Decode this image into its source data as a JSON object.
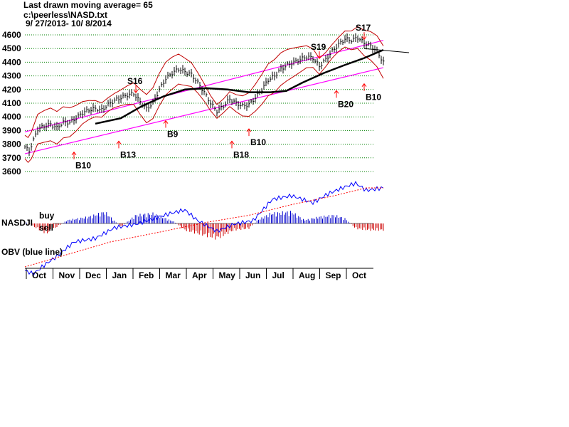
{
  "header": {
    "line1": "Last drawn moving average= 65",
    "line2": "c:\\peerless\\NASD.txt",
    "line3": " 9/ 27/2013- 10/ 8/2014"
  },
  "colors": {
    "price": "#000000",
    "channel": "#ff00ff",
    "bands": "#c00000",
    "grid": "#008000",
    "indicator_pos": "#0000cc",
    "indicator_neg": "#cc0000",
    "obv": "#0000ff",
    "obv_ma": "#ff0000",
    "arrow": "#ff0000"
  },
  "chart_data": {
    "type": "line",
    "title": "",
    "y_ticks": [
      "4600",
      "4500",
      "4400",
      "4300",
      "4200",
      "4100",
      "4000",
      "3900",
      "3800",
      "3700",
      "3600"
    ],
    "ylim": [
      3600,
      4600
    ],
    "grid": true,
    "months": [
      "Oct",
      "Nov",
      "Dec",
      "Jan",
      "Feb",
      "Mar",
      "Apr",
      "May",
      "Jun",
      "Jul",
      "Aug",
      "Sep",
      "Oct"
    ],
    "close": [
      [
        0,
        3780
      ],
      [
        4,
        3750
      ],
      [
        8,
        3830
      ],
      [
        12,
        3910
      ],
      [
        18,
        3930
      ],
      [
        24,
        3945
      ],
      [
        30,
        3920
      ],
      [
        36,
        3960
      ],
      [
        42,
        3960
      ],
      [
        48,
        3990
      ],
      [
        54,
        4030
      ],
      [
        60,
        4050
      ],
      [
        66,
        4060
      ],
      [
        72,
        4050
      ],
      [
        78,
        4090
      ],
      [
        84,
        4120
      ],
      [
        90,
        4140
      ],
      [
        96,
        4160
      ],
      [
        102,
        4170
      ],
      [
        108,
        4110
      ],
      [
        114,
        4060
      ],
      [
        120,
        4100
      ],
      [
        126,
        4200
      ],
      [
        132,
        4280
      ],
      [
        138,
        4320
      ],
      [
        144,
        4350
      ],
      [
        150,
        4330
      ],
      [
        156,
        4310
      ],
      [
        162,
        4250
      ],
      [
        168,
        4180
      ],
      [
        174,
        4100
      ],
      [
        180,
        4040
      ],
      [
        186,
        4080
      ],
      [
        192,
        4130
      ],
      [
        198,
        4100
      ],
      [
        204,
        4080
      ],
      [
        210,
        4090
      ],
      [
        216,
        4140
      ],
      [
        222,
        4200
      ],
      [
        228,
        4270
      ],
      [
        234,
        4300
      ],
      [
        240,
        4350
      ],
      [
        246,
        4380
      ],
      [
        252,
        4400
      ],
      [
        258,
        4420
      ],
      [
        264,
        4440
      ],
      [
        270,
        4430
      ],
      [
        276,
        4370
      ],
      [
        282,
        4420
      ],
      [
        288,
        4480
      ],
      [
        294,
        4530
      ],
      [
        300,
        4570
      ],
      [
        306,
        4560
      ],
      [
        312,
        4580
      ],
      [
        318,
        4540
      ],
      [
        324,
        4520
      ],
      [
        330,
        4480
      ],
      [
        336,
        4400
      ]
    ],
    "moving_average_65": [
      [
        66,
        3950
      ],
      [
        90,
        3990
      ],
      [
        110,
        4080
      ],
      [
        130,
        4150
      ],
      [
        150,
        4200
      ],
      [
        170,
        4210
      ],
      [
        190,
        4200
      ],
      [
        210,
        4180
      ],
      [
        230,
        4180
      ],
      [
        245,
        4190
      ],
      [
        260,
        4250
      ],
      [
        280,
        4320
      ],
      [
        300,
        4380
      ],
      [
        318,
        4430
      ],
      [
        336,
        4490
      ]
    ],
    "channel_lines": [
      {
        "from": [
          0,
          3890
        ],
        "to": [
          336,
          4560
        ]
      },
      {
        "from": [
          0,
          3730
        ],
        "to": [
          336,
          4360
        ]
      }
    ],
    "trend_line": {
      "from": [
        318,
        4500
      ],
      "to": [
        360,
        4470
      ]
    },
    "signals": [
      {
        "label": "S16",
        "x": 104,
        "y": 4240,
        "type": "sell"
      },
      {
        "label": "S19",
        "x": 276,
        "y": 4490,
        "type": "sell"
      },
      {
        "label": "S17",
        "x": 318,
        "y": 4630,
        "type": "sell"
      },
      {
        "label": "B10",
        "x": 46,
        "y": 3690,
        "type": "buy"
      },
      {
        "label": "B13",
        "x": 88,
        "y": 3770,
        "type": "buy"
      },
      {
        "label": "B9",
        "x": 132,
        "y": 3920,
        "type": "buy"
      },
      {
        "label": "B18",
        "x": 194,
        "y": 3770,
        "type": "buy"
      },
      {
        "label": "B10",
        "x": 210,
        "y": 3860,
        "type": "buy"
      },
      {
        "label": "B20",
        "x": 292,
        "y": 4140,
        "type": "buy"
      },
      {
        "label": "B10",
        "x": 318,
        "y": 4190,
        "type": "buy"
      }
    ],
    "indicator": {
      "label": "NASDJI",
      "buy_label": "buy",
      "sell_label": "sell",
      "values": [
        [
          0,
          0.1
        ],
        [
          20,
          -0.6
        ],
        [
          40,
          0.2
        ],
        [
          60,
          0.4
        ],
        [
          75,
          0.7
        ],
        [
          90,
          -0.2
        ],
        [
          104,
          0.5
        ],
        [
          120,
          0.6
        ],
        [
          140,
          0.1
        ],
        [
          150,
          -0.4
        ],
        [
          162,
          -0.6
        ],
        [
          180,
          -0.9
        ],
        [
          196,
          -0.4
        ],
        [
          210,
          -0.3
        ],
        [
          218,
          0.2
        ],
        [
          230,
          0.6
        ],
        [
          250,
          0.7
        ],
        [
          262,
          0.2
        ],
        [
          276,
          0.4
        ],
        [
          290,
          0.5
        ],
        [
          300,
          0.3
        ],
        [
          310,
          -0.3
        ],
        [
          322,
          -0.4
        ],
        [
          336,
          -0.4
        ]
      ]
    },
    "obv": {
      "label": "OBV (blue line)",
      "values": [
        [
          0,
          30
        ],
        [
          8,
          20
        ],
        [
          16,
          40
        ],
        [
          30,
          70
        ],
        [
          46,
          110
        ],
        [
          66,
          120
        ],
        [
          84,
          150
        ],
        [
          104,
          160
        ],
        [
          120,
          175
        ],
        [
          136,
          190
        ],
        [
          150,
          200
        ],
        [
          162,
          170
        ],
        [
          180,
          140
        ],
        [
          196,
          160
        ],
        [
          214,
          170
        ],
        [
          232,
          230
        ],
        [
          250,
          240
        ],
        [
          270,
          220
        ],
        [
          284,
          245
        ],
        [
          300,
          265
        ],
        [
          310,
          275
        ],
        [
          320,
          255
        ],
        [
          336,
          262
        ]
      ],
      "ma": [
        [
          0,
          40
        ],
        [
          40,
          75
        ],
        [
          80,
          110
        ],
        [
          130,
          140
        ],
        [
          170,
          165
        ],
        [
          210,
          185
        ],
        [
          250,
          215
        ],
        [
          290,
          240
        ],
        [
          320,
          262
        ],
        [
          336,
          262
        ]
      ]
    }
  }
}
